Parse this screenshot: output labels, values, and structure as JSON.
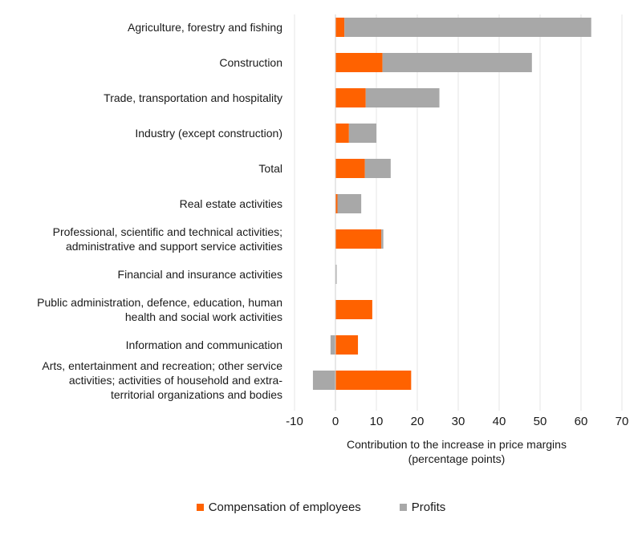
{
  "chart_data": {
    "type": "bar",
    "orientation": "horizontal",
    "stacked": true,
    "categories": [
      [
        "Agriculture, forestry and fishing"
      ],
      [
        "Construction"
      ],
      [
        "Trade, transportation and hospitality"
      ],
      [
        "Industry (except construction)"
      ],
      [
        "Total"
      ],
      [
        "Real estate activities"
      ],
      [
        "Professional, scientific and technical activities;",
        "administrative and support service activities"
      ],
      [
        "Financial and insurance activities"
      ],
      [
        "Public administration, defence, education, human",
        "health and social work activities"
      ],
      [
        "Information and communication"
      ],
      [
        "Arts, entertainment and recreation; other service",
        "activities; activities of household and extra-",
        "territorial organizations and bodies"
      ]
    ],
    "series": [
      {
        "name": "Compensation of employees",
        "color": "#ff6200",
        "values": [
          2.2,
          11.5,
          7.4,
          3.3,
          7.2,
          0.5,
          11.2,
          0.0,
          9.0,
          5.5,
          18.5
        ]
      },
      {
        "name": "Profits",
        "color": "#a8a8a8",
        "values": [
          60.3,
          36.5,
          18.0,
          6.7,
          6.3,
          5.8,
          0.5,
          0.3,
          0.0,
          -1.2,
          -5.5
        ]
      }
    ],
    "xlim": [
      -10,
      70
    ],
    "xticks": [
      "-10",
      "0",
      "10",
      "20",
      "30",
      "40",
      "50",
      "60",
      "70"
    ],
    "xticks_values": [
      -10,
      0,
      10,
      20,
      30,
      40,
      50,
      60,
      70
    ],
    "xlabel": [
      "Contribution to the increase in price margins",
      "(percentage points)"
    ],
    "grid": true,
    "legend_position": "bottom"
  }
}
